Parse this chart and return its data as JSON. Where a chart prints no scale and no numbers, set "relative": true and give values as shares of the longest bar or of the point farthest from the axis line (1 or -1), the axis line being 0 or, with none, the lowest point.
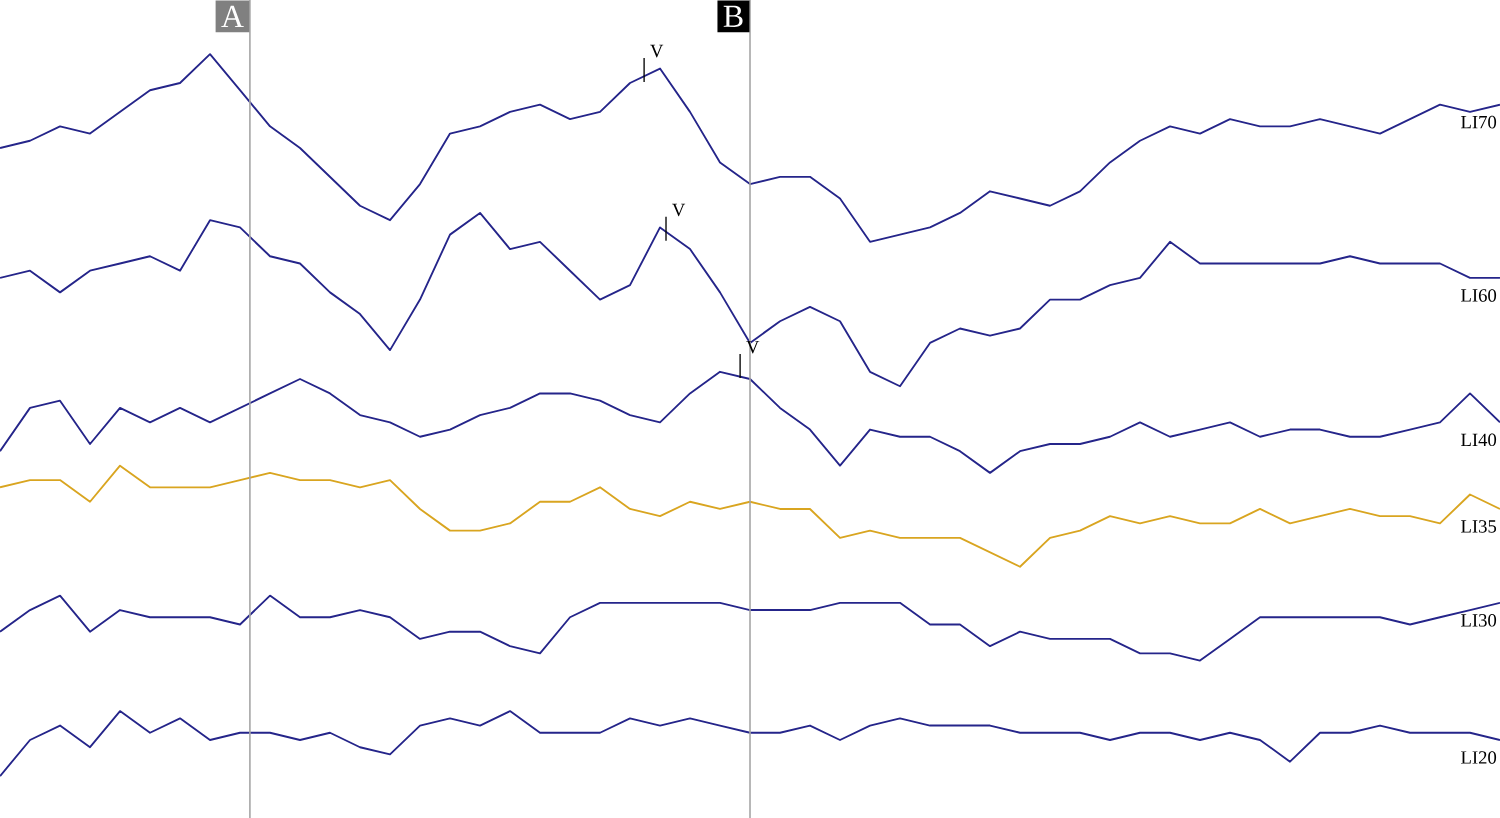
{
  "chart_data": {
    "type": "line",
    "relative": true,
    "categories": [
      null,
      null,
      null,
      null,
      null,
      null,
      null,
      null,
      null,
      null,
      null,
      null,
      null,
      null,
      null,
      null,
      null,
      null,
      null,
      null,
      null,
      null,
      null,
      null,
      null,
      null,
      null,
      null,
      null,
      null,
      null,
      null,
      null,
      null,
      null,
      null,
      null,
      null,
      null,
      null,
      null,
      null,
      null,
      null,
      null,
      null,
      null,
      null,
      null,
      null,
      null
    ],
    "series": [
      {
        "name": "LI70",
        "color": "#25258a",
        "values": [
          0.87,
          0.88,
          0.9,
          0.89,
          0.92,
          0.95,
          0.96,
          1.0,
          0.95,
          0.9,
          0.87,
          0.83,
          0.79,
          0.77,
          0.82,
          0.89,
          0.9,
          0.92,
          0.93,
          0.91,
          0.92,
          0.96,
          0.98,
          0.92,
          0.85,
          0.82,
          0.83,
          0.83,
          0.8,
          0.74,
          0.75,
          0.76,
          0.78,
          0.81,
          0.8,
          0.79,
          0.81,
          0.85,
          0.88,
          0.9,
          0.89,
          0.91,
          0.9,
          0.9,
          0.91,
          0.9,
          0.89,
          0.91,
          0.93,
          0.92,
          0.93
        ]
      },
      {
        "name": "LI60",
        "color": "#25258a",
        "values": [
          0.69,
          0.7,
          0.67,
          0.7,
          0.71,
          0.72,
          0.7,
          0.77,
          0.76,
          0.72,
          0.71,
          0.67,
          0.64,
          0.59,
          0.66,
          0.75,
          0.78,
          0.73,
          0.74,
          0.7,
          0.66,
          0.68,
          0.76,
          0.73,
          0.67,
          0.6,
          0.63,
          0.65,
          0.63,
          0.56,
          0.54,
          0.6,
          0.62,
          0.61,
          0.62,
          0.66,
          0.66,
          0.68,
          0.69,
          0.74,
          0.71,
          0.71,
          0.71,
          0.71,
          0.71,
          0.72,
          0.71,
          0.71,
          0.71,
          0.69,
          0.69
        ]
      },
      {
        "name": "LI40",
        "color": "#25258a",
        "values": [
          0.45,
          0.51,
          0.52,
          0.46,
          0.51,
          0.49,
          0.51,
          0.49,
          0.51,
          0.53,
          0.55,
          0.53,
          0.5,
          0.49,
          0.47,
          0.48,
          0.5,
          0.51,
          0.53,
          0.53,
          0.52,
          0.5,
          0.49,
          0.53,
          0.56,
          0.55,
          0.51,
          0.48,
          0.43,
          0.48,
          0.47,
          0.47,
          0.45,
          0.42,
          0.45,
          0.46,
          0.46,
          0.47,
          0.49,
          0.47,
          0.48,
          0.49,
          0.47,
          0.48,
          0.48,
          0.47,
          0.47,
          0.48,
          0.49,
          0.53,
          0.49
        ]
      },
      {
        "name": "LI35",
        "color": "#d9a520",
        "values": [
          0.4,
          0.41,
          0.41,
          0.38,
          0.43,
          0.4,
          0.4,
          0.4,
          0.41,
          0.42,
          0.41,
          0.41,
          0.4,
          0.41,
          0.37,
          0.34,
          0.34,
          0.35,
          0.38,
          0.38,
          0.4,
          0.37,
          0.36,
          0.38,
          0.37,
          0.38,
          0.37,
          0.37,
          0.33,
          0.34,
          0.33,
          0.33,
          0.33,
          0.31,
          0.29,
          0.33,
          0.34,
          0.36,
          0.35,
          0.36,
          0.35,
          0.35,
          0.37,
          0.35,
          0.36,
          0.37,
          0.36,
          0.36,
          0.35,
          0.39,
          0.37
        ]
      },
      {
        "name": "LI30",
        "color": "#25258a",
        "values": [
          0.2,
          0.23,
          0.25,
          0.2,
          0.23,
          0.22,
          0.22,
          0.22,
          0.21,
          0.25,
          0.22,
          0.22,
          0.23,
          0.22,
          0.19,
          0.2,
          0.2,
          0.18,
          0.17,
          0.22,
          0.24,
          0.24,
          0.24,
          0.24,
          0.24,
          0.23,
          0.23,
          0.23,
          0.24,
          0.24,
          0.24,
          0.21,
          0.21,
          0.18,
          0.2,
          0.19,
          0.19,
          0.19,
          0.17,
          0.17,
          0.16,
          0.19,
          0.22,
          0.22,
          0.22,
          0.22,
          0.22,
          0.21,
          0.22,
          0.23,
          0.24
        ]
      },
      {
        "name": "LI20",
        "color": "#25258a",
        "values": [
          0.0,
          0.05,
          0.07,
          0.04,
          0.09,
          0.06,
          0.08,
          0.05,
          0.06,
          0.06,
          0.05,
          0.06,
          0.04,
          0.03,
          0.07,
          0.08,
          0.07,
          0.09,
          0.06,
          0.06,
          0.06,
          0.08,
          0.07,
          0.08,
          0.07,
          0.06,
          0.06,
          0.07,
          0.05,
          0.07,
          0.08,
          0.07,
          0.07,
          0.07,
          0.06,
          0.06,
          0.06,
          0.05,
          0.06,
          0.06,
          0.05,
          0.06,
          0.05,
          0.02,
          0.06,
          0.06,
          0.07,
          0.06,
          0.06,
          0.06,
          0.05
        ]
      }
    ],
    "annotations": [
      "A",
      "B",
      "V",
      "V",
      "V"
    ]
  }
}
